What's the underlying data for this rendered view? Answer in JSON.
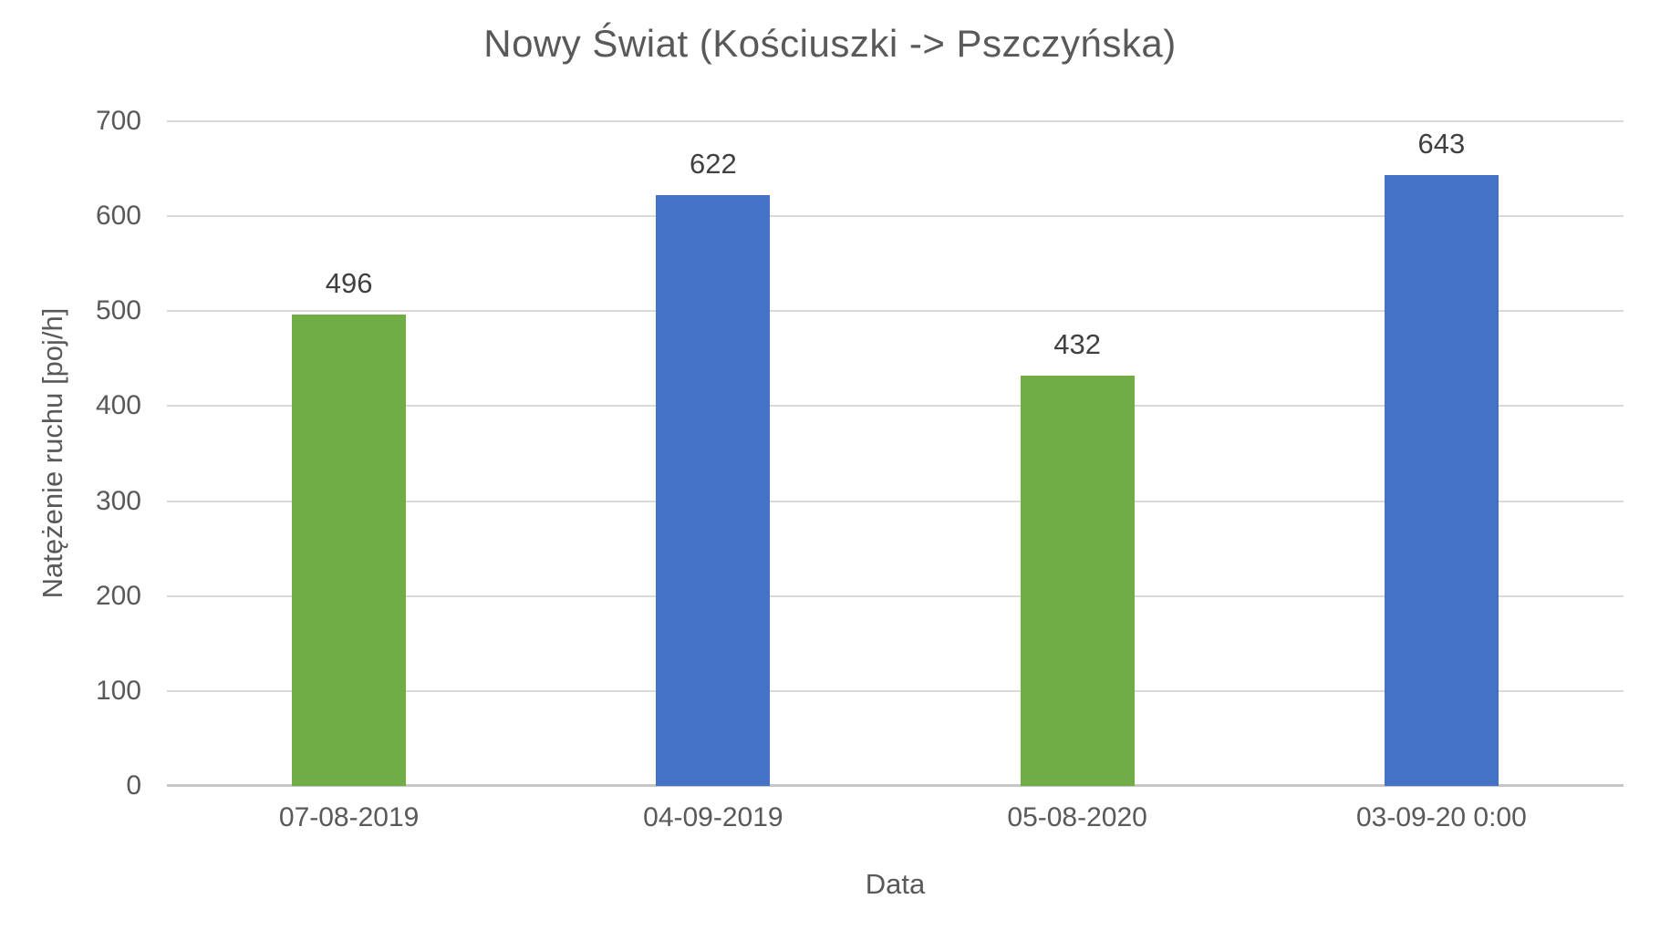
{
  "chart_data": {
    "type": "bar",
    "title": "Nowy Świat (Kościuszki -> Pszczyńska)",
    "xlabel": "Data",
    "ylabel": "Natężenie ruchu [poj/h]",
    "categories": [
      "07-08-2019",
      "04-09-2019",
      "05-08-2020",
      "03-09-20 0:00"
    ],
    "values": [
      496,
      622,
      432,
      643
    ],
    "bar_colors": [
      "#70ad47",
      "#4472c4",
      "#70ad47",
      "#4472c4"
    ],
    "ylim": [
      0,
      700
    ],
    "ytick_step": 100,
    "grid": true,
    "legend": "none",
    "colors": {
      "series_green": "#70ad47",
      "series_blue": "#4472c4",
      "gridline": "#d9d9d9",
      "axis_line": "#c6c6c6",
      "axis_text": "#595959",
      "title_text": "#595959",
      "value_label_text": "#404040",
      "background": "#ffffff"
    }
  }
}
